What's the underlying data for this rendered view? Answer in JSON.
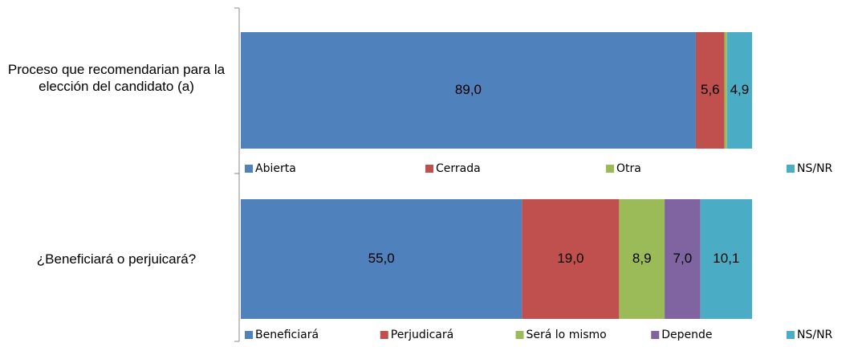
{
  "chart_data": [
    {
      "type": "bar",
      "orientation": "horizontal",
      "stacked": true,
      "categories": [
        "Proceso que recomendarian para la elección del candidato (a)"
      ],
      "xlim": [
        0,
        100
      ],
      "legend": "bottom",
      "series": [
        {
          "name": "Abierta",
          "color": "#4f81bd",
          "values": [
            89.0
          ],
          "value_labels": [
            "89,0"
          ]
        },
        {
          "name": "Cerrada",
          "color": "#c0504d",
          "values": [
            5.6
          ],
          "value_labels": [
            "5,6"
          ]
        },
        {
          "name": "Otra",
          "color": "#9bbb59",
          "values": [
            0.5
          ],
          "value_labels": [
            null
          ]
        },
        {
          "name": "NS/NR",
          "color": "#4bacc6",
          "values": [
            4.9
          ],
          "value_labels": [
            "4,9"
          ]
        }
      ]
    },
    {
      "type": "bar",
      "orientation": "horizontal",
      "stacked": true,
      "categories": [
        "¿Beneficiará o perjuicará?"
      ],
      "xlim": [
        0,
        100
      ],
      "legend": "bottom",
      "series": [
        {
          "name": "Beneficiará",
          "color": "#4f81bd",
          "values": [
            55.0
          ],
          "value_labels": [
            "55,0"
          ]
        },
        {
          "name": "Perjudicará",
          "color": "#c0504d",
          "values": [
            19.0
          ],
          "value_labels": [
            "19,0"
          ]
        },
        {
          "name": "Será lo mismo",
          "color": "#9bbb59",
          "values": [
            8.9
          ],
          "value_labels": [
            "8,9"
          ]
        },
        {
          "name": "Depende",
          "color": "#8064a2",
          "values": [
            7.0
          ],
          "value_labels": [
            "7,0"
          ]
        },
        {
          "name": "NS/NR",
          "color": "#4bacc6",
          "values": [
            10.1
          ],
          "value_labels": [
            "10,1"
          ]
        }
      ]
    }
  ]
}
